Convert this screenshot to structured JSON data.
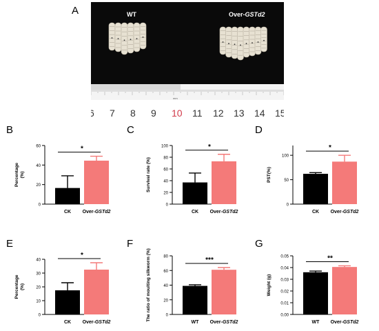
{
  "panel_letters": [
    "A",
    "B",
    "C",
    "D",
    "E",
    "F",
    "G"
  ],
  "photo": {
    "wt_label": "WT",
    "over_label_prefix": "Over-",
    "over_label_gene": "GSTd2",
    "ruler_numbers": [
      "6",
      "7",
      "8",
      "9",
      "10",
      "11",
      "12",
      "13",
      "14",
      "15"
    ],
    "ruler_unit": "mm",
    "highlight_number": "10",
    "highlight_color": "#d23a4a",
    "background_color": "#0a0a0a",
    "larva_color": "#e7e1d2"
  },
  "colors": {
    "control": "#000000",
    "overexpression": "#f47a79",
    "sig_line": "#000000"
  },
  "chart_data": [
    {
      "panel": "B",
      "type": "bar",
      "ylabel": "Percentage\n(%)",
      "ylim": [
        0,
        60
      ],
      "yticks": [
        "0",
        "20",
        "40",
        "60"
      ],
      "categories": [
        {
          "prefix": "CK",
          "gene": ""
        },
        {
          "prefix": "Over-",
          "gene": "GSTd2"
        }
      ],
      "values": [
        16.5,
        44.5
      ],
      "errors": [
        12.5,
        4.5
      ],
      "significance": "*"
    },
    {
      "panel": "C",
      "type": "bar",
      "ylabel": "Survival rate (%)",
      "ylim": [
        0,
        100
      ],
      "yticks": [
        "0",
        "20",
        "40",
        "60",
        "80",
        "100"
      ],
      "categories": [
        {
          "prefix": "CK",
          "gene": ""
        },
        {
          "prefix": "Over-",
          "gene": "GSTd2"
        }
      ],
      "values": [
        37,
        73
      ],
      "errors": [
        16,
        12
      ],
      "significance": "*"
    },
    {
      "panel": "D",
      "type": "bar",
      "ylabel": "PST(%)",
      "ylim": [
        0,
        120
      ],
      "yticks": [
        "0",
        "50",
        "100"
      ],
      "categories": [
        {
          "prefix": "CK",
          "gene": ""
        },
        {
          "prefix": "Over-",
          "gene": "GSTd2"
        }
      ],
      "values": [
        62,
        87
      ],
      "errors": [
        2.5,
        13
      ],
      "significance": "*"
    },
    {
      "panel": "E",
      "type": "bar",
      "ylabel": "Percentage\n(%)",
      "ylim": [
        0,
        40
      ],
      "yticks": [
        "0",
        "10",
        "20",
        "30",
        "40"
      ],
      "categories": [
        {
          "prefix": "CK",
          "gene": ""
        },
        {
          "prefix": "Over-",
          "gene": "GSTd2"
        }
      ],
      "values": [
        17.5,
        32.5
      ],
      "errors": [
        5.5,
        5
      ],
      "significance": "*"
    },
    {
      "panel": "F",
      "type": "bar",
      "ylabel": "The ratio of moulting silkworm (%)",
      "ylim": [
        0,
        80
      ],
      "yticks": [
        "0",
        "20",
        "40",
        "60",
        "80"
      ],
      "categories": [
        {
          "prefix": "WT",
          "gene": ""
        },
        {
          "prefix": "Over-",
          "gene": "GSTd2"
        }
      ],
      "values": [
        39,
        61
      ],
      "errors": [
        1.5,
        3
      ],
      "significance": "***"
    },
    {
      "panel": "G",
      "type": "bar",
      "ylabel": "Weight (g)",
      "ylim": [
        0,
        0.05
      ],
      "yticks": [
        "0.00",
        "0.01",
        "0.02",
        "0.03",
        "0.04",
        "0.05"
      ],
      "categories": [
        {
          "prefix": "WT",
          "gene": ""
        },
        {
          "prefix": "Over-",
          "gene": "GSTd2"
        }
      ],
      "values": [
        0.036,
        0.0405
      ],
      "errors": [
        0.001,
        0.001
      ],
      "significance": "**"
    }
  ]
}
